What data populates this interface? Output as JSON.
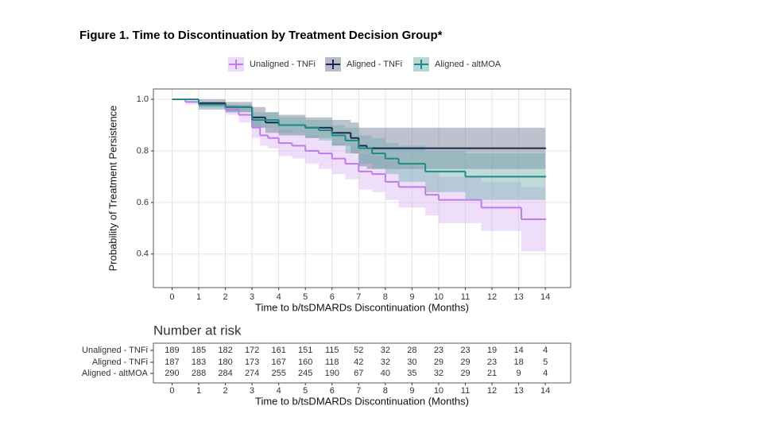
{
  "title": "Figure 1. Time to Discontinuation by Treatment Decision Group*",
  "chart_data": [
    {
      "type": "step",
      "legend": "top",
      "grid": true,
      "y_label": "Probability of Treatment Persistence",
      "x_label": "Time to b/tsDMARDs Discontinuation (Months)",
      "xlim": [
        -0.7,
        14.95
      ],
      "ylim": [
        0.27,
        1.04
      ],
      "xticks": [
        0,
        1,
        2,
        3,
        4,
        5,
        6,
        7,
        8,
        9,
        10,
        11,
        12,
        13,
        14
      ],
      "yticks": [
        {
          "value": 0.4,
          "label": "0.4"
        },
        {
          "value": 0.6,
          "label": "0.6"
        },
        {
          "value": 0.8,
          "label": "0.8"
        },
        {
          "value": 1.0,
          "label": "1.0"
        }
      ],
      "series": [
        {
          "name": "Unaligned - TNFi",
          "color": "#c27be6",
          "band_color": "#dcb6f2",
          "x": [
            0,
            0.5,
            1,
            2,
            2.5,
            3,
            3.3,
            3.6,
            4,
            4.5,
            5,
            5.5,
            6,
            6.5,
            7,
            7.5,
            8,
            8.5,
            9.5,
            10,
            11.6,
            13.1,
            14
          ],
          "values": [
            1,
            0.99,
            0.98,
            0.96,
            0.94,
            0.89,
            0.86,
            0.85,
            0.83,
            0.82,
            0.8,
            0.79,
            0.77,
            0.75,
            0.72,
            0.71,
            0.68,
            0.66,
            0.63,
            0.61,
            0.58,
            0.535,
            0.535
          ],
          "upper": [
            1,
            1,
            0.99,
            0.98,
            0.97,
            0.93,
            0.9,
            0.89,
            0.88,
            0.87,
            0.86,
            0.85,
            0.83,
            0.82,
            0.79,
            0.78,
            0.76,
            0.74,
            0.72,
            0.7,
            0.68,
            0.66,
            0.66
          ],
          "lower": [
            1,
            0.98,
            0.96,
            0.94,
            0.91,
            0.85,
            0.82,
            0.81,
            0.78,
            0.77,
            0.75,
            0.73,
            0.71,
            0.69,
            0.65,
            0.64,
            0.61,
            0.58,
            0.55,
            0.52,
            0.49,
            0.41,
            0.41
          ]
        },
        {
          "name": "Aligned - TNFi",
          "color": "#1a2550",
          "band_color": "#6f7592",
          "x": [
            0,
            1,
            2,
            3,
            3.5,
            4,
            5,
            6,
            6.7,
            7,
            7.3,
            14
          ],
          "values": [
            1,
            0.985,
            0.97,
            0.93,
            0.91,
            0.9,
            0.89,
            0.87,
            0.85,
            0.82,
            0.81,
            0.81
          ],
          "upper": [
            1,
            1,
            0.99,
            0.97,
            0.95,
            0.94,
            0.93,
            0.92,
            0.91,
            0.89,
            0.89,
            0.89
          ],
          "lower": [
            1,
            0.97,
            0.95,
            0.89,
            0.87,
            0.86,
            0.85,
            0.82,
            0.79,
            0.74,
            0.73,
            0.73
          ]
        },
        {
          "name": "Aligned - altMOA",
          "color": "#1f8a85",
          "band_color": "#6fb0ab",
          "x": [
            0,
            1,
            2,
            3,
            4,
            5,
            5.5,
            6,
            6.5,
            7,
            7.5,
            8,
            8.5,
            9.5,
            11,
            14
          ],
          "values": [
            1,
            0.98,
            0.97,
            0.92,
            0.9,
            0.89,
            0.88,
            0.86,
            0.84,
            0.81,
            0.79,
            0.77,
            0.75,
            0.72,
            0.7,
            0.7
          ],
          "upper": [
            1,
            0.99,
            0.98,
            0.95,
            0.93,
            0.92,
            0.92,
            0.9,
            0.89,
            0.86,
            0.85,
            0.83,
            0.82,
            0.8,
            0.79,
            0.79
          ],
          "lower": [
            1,
            0.96,
            0.95,
            0.89,
            0.87,
            0.85,
            0.84,
            0.82,
            0.79,
            0.75,
            0.73,
            0.71,
            0.68,
            0.64,
            0.61,
            0.61
          ]
        }
      ]
    },
    {
      "type": "risk_table",
      "title": "Number at risk",
      "x_label": "Time to b/tsDMARDs Discontinuation (Months)",
      "xlim": [
        -0.7,
        14.95
      ],
      "xticks": [
        0,
        1,
        2,
        3,
        4,
        5,
        6,
        7,
        8,
        9,
        10,
        11,
        12,
        13,
        14
      ],
      "x": [
        0,
        1,
        2,
        3,
        4,
        5,
        6,
        7,
        8,
        9,
        10,
        11,
        12,
        13,
        14
      ],
      "series": [
        {
          "name": "Unaligned - TNFi",
          "color": "#c27be6",
          "values": [
            189,
            185,
            182,
            172,
            161,
            151,
            115,
            52,
            32,
            28,
            23,
            23,
            19,
            14,
            4
          ]
        },
        {
          "name": "Aligned - TNFi",
          "color": "#1a2550",
          "values": [
            187,
            183,
            180,
            173,
            167,
            160,
            118,
            42,
            32,
            30,
            29,
            29,
            23,
            18,
            5
          ]
        },
        {
          "name": "Aligned - altMOA",
          "color": "#1f8a85",
          "values": [
            290,
            288,
            284,
            274,
            255,
            245,
            190,
            67,
            40,
            35,
            32,
            29,
            21,
            9,
            4
          ]
        }
      ]
    }
  ]
}
